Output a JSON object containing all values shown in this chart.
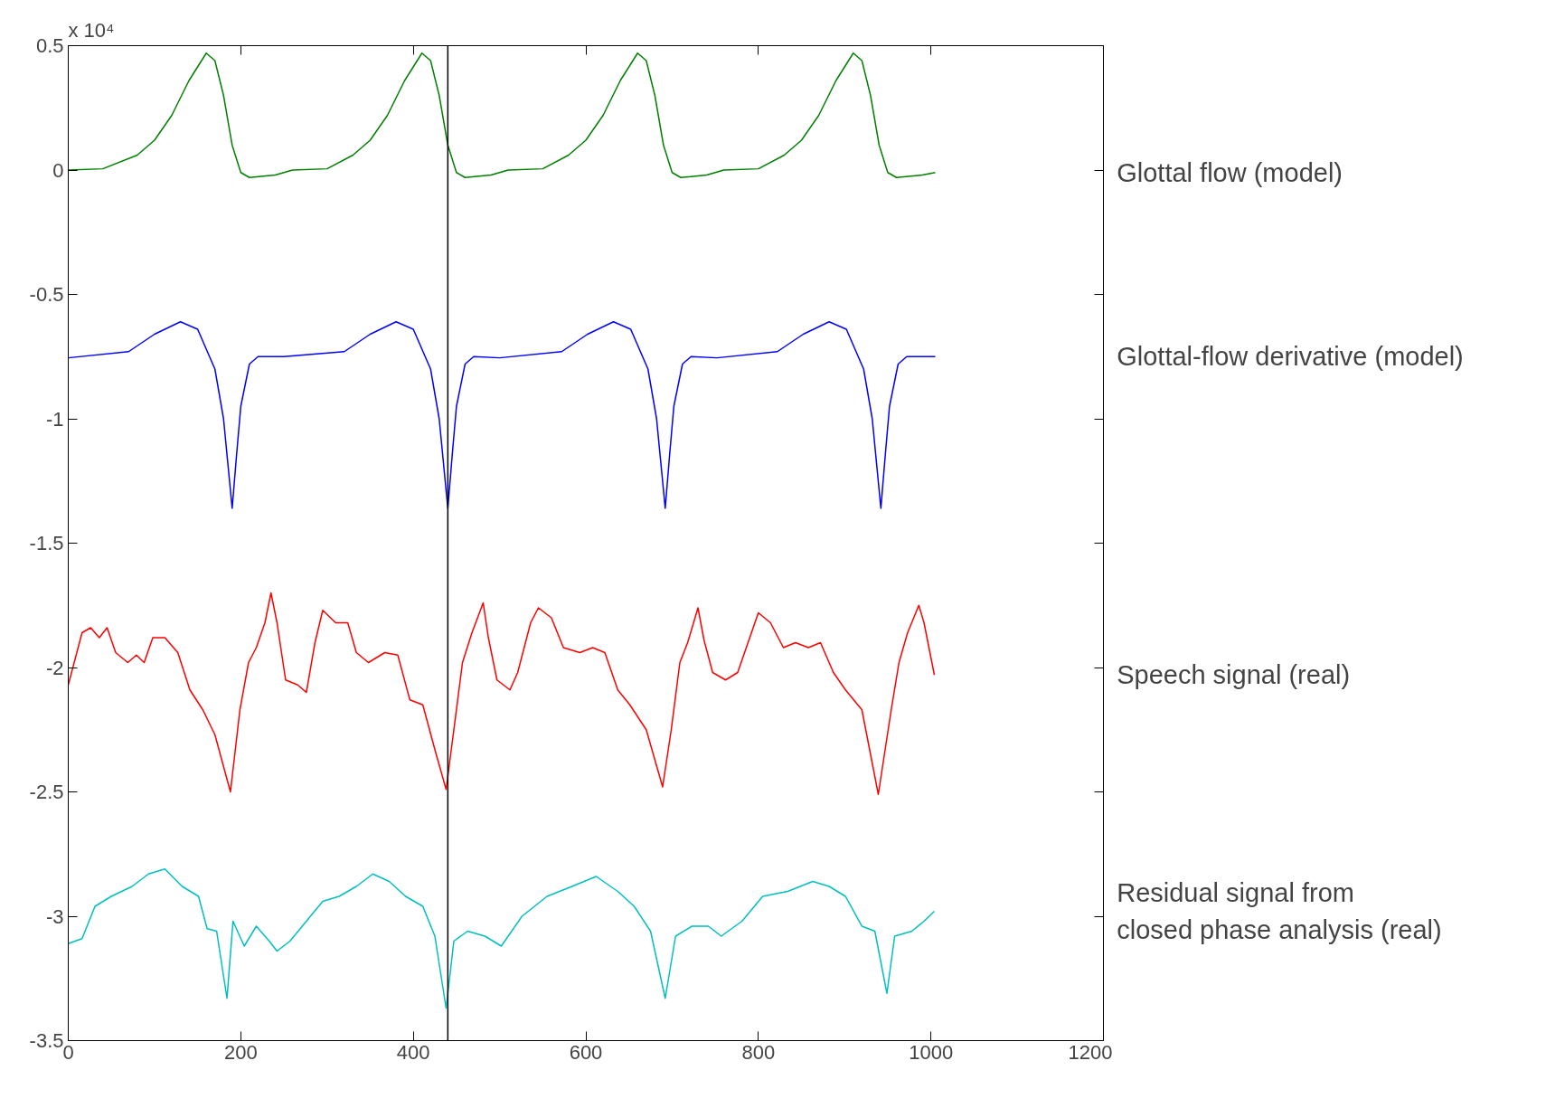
{
  "chart_data": {
    "type": "line",
    "xlim": [
      0,
      1200
    ],
    "ylim": [
      -3.5,
      0.5
    ],
    "xticks": [
      0,
      200,
      400,
      600,
      800,
      1000,
      1200
    ],
    "yticks": [
      0.5,
      0,
      -0.5,
      -1,
      -1.5,
      -2,
      -2.5,
      -3,
      -3.5
    ],
    "grid": false,
    "legend": false,
    "marker": "none",
    "line_style": "solid",
    "annotations": [
      "x 10⁴"
    ],
    "ref_lines": [
      {
        "axis": "x",
        "value": 440,
        "color": "#000000"
      }
    ],
    "series": [
      {
        "name": "Glottal flow (model)",
        "color": "#008000",
        "x": [
          0,
          40,
          80,
          100,
          120,
          140,
          160,
          170,
          180,
          190,
          200,
          210,
          240,
          260,
          300,
          330,
          350,
          370,
          390,
          410,
          420,
          430,
          440,
          450,
          460,
          490,
          510,
          550,
          580,
          600,
          620,
          640,
          660,
          670,
          680,
          690,
          700,
          710,
          740,
          760,
          800,
          830,
          850,
          870,
          890,
          910,
          920,
          930,
          940,
          950,
          960,
          990,
          1005
        ],
        "values": [
          0,
          0.005,
          0.06,
          0.12,
          0.22,
          0.36,
          0.47,
          0.44,
          0.3,
          0.1,
          -0.01,
          -0.03,
          -0.02,
          0,
          0.005,
          0.06,
          0.12,
          0.22,
          0.36,
          0.47,
          0.44,
          0.3,
          0.1,
          -0.01,
          -0.03,
          -0.02,
          0,
          0.005,
          0.06,
          0.12,
          0.22,
          0.36,
          0.47,
          0.44,
          0.3,
          0.1,
          -0.01,
          -0.03,
          -0.02,
          0,
          0.005,
          0.06,
          0.12,
          0.22,
          0.36,
          0.47,
          0.44,
          0.3,
          0.1,
          -0.01,
          -0.03,
          -0.02,
          -0.01
        ]
      },
      {
        "name": "Glottal-flow derivative (model)",
        "color": "#0000ff",
        "x": [
          0,
          70,
          100,
          130,
          150,
          170,
          180,
          190,
          195,
          200,
          210,
          220,
          250,
          320,
          350,
          380,
          400,
          420,
          430,
          440,
          445,
          450,
          460,
          470,
          500,
          572,
          602,
          632,
          652,
          672,
          682,
          692,
          697,
          702,
          712,
          722,
          752,
          822,
          852,
          882,
          902,
          922,
          932,
          942,
          947,
          952,
          962,
          972,
          1005
        ],
        "values": [
          -0.755,
          -0.73,
          -0.66,
          -0.61,
          -0.64,
          -0.8,
          -1.0,
          -1.36,
          -1.15,
          -0.95,
          -0.78,
          -0.75,
          -0.75,
          -0.73,
          -0.66,
          -0.61,
          -0.64,
          -0.8,
          -1.0,
          -1.36,
          -1.15,
          -0.95,
          -0.78,
          -0.75,
          -0.755,
          -0.73,
          -0.66,
          -0.61,
          -0.64,
          -0.8,
          -1.0,
          -1.36,
          -1.15,
          -0.95,
          -0.78,
          -0.75,
          -0.755,
          -0.73,
          -0.66,
          -0.61,
          -0.64,
          -0.8,
          -1.0,
          -1.36,
          -1.15,
          -0.95,
          -0.78,
          -0.75,
          -0.75
        ]
      },
      {
        "name": "Speech signal (real)",
        "color": "#ff0000",
        "x": [
          0,
          16,
          26,
          36,
          45,
          55,
          69,
          79,
          88,
          98,
          112,
          127,
          141,
          156,
          170,
          188,
          199,
          209,
          218,
          228,
          235,
          242,
          252,
          266,
          276,
          286,
          295,
          310,
          324,
          334,
          348,
          367,
          382,
          396,
          411,
          425,
          438,
          447,
          457,
          468,
          481,
          487,
          497,
          512,
          521,
          536,
          545,
          560,
          574,
          593,
          608,
          622,
          637,
          651,
          670,
          689,
          699,
          709,
          718,
          730,
          737,
          747,
          762,
          776,
          790,
          800,
          814,
          829,
          843,
          858,
          872,
          887,
          901,
          920,
          939,
          954,
          963,
          973,
          986,
          992,
          1004
        ],
        "values": [
          -2.07,
          -1.86,
          -1.84,
          -1.88,
          -1.84,
          -1.94,
          -1.98,
          -1.95,
          -1.98,
          -1.88,
          -1.88,
          -1.94,
          -2.09,
          -2.17,
          -2.27,
          -2.5,
          -2.17,
          -1.98,
          -1.92,
          -1.82,
          -1.7,
          -1.82,
          -2.05,
          -2.07,
          -2.1,
          -1.9,
          -1.77,
          -1.82,
          -1.82,
          -1.94,
          -1.98,
          -1.94,
          -1.95,
          -2.13,
          -2.15,
          -2.33,
          -2.49,
          -2.25,
          -1.98,
          -1.86,
          -1.74,
          -1.88,
          -2.05,
          -2.09,
          -2.02,
          -1.82,
          -1.76,
          -1.8,
          -1.92,
          -1.94,
          -1.92,
          -1.94,
          -2.09,
          -2.15,
          -2.25,
          -2.48,
          -2.25,
          -1.98,
          -1.9,
          -1.76,
          -1.89,
          -2.02,
          -2.05,
          -2.02,
          -1.88,
          -1.78,
          -1.82,
          -1.92,
          -1.9,
          -1.92,
          -1.9,
          -2.02,
          -2.09,
          -2.17,
          -2.51,
          -2.17,
          -1.98,
          -1.86,
          -1.75,
          -1.82,
          -2.03
        ]
      },
      {
        "name": "Residual signal from\nclosed phase analysis (real)",
        "color": "#00bfbf",
        "x": [
          0,
          16,
          31,
          50,
          74,
          93,
          112,
          132,
          151,
          161,
          172,
          184,
          191,
          204,
          218,
          233,
          242,
          257,
          276,
          295,
          314,
          334,
          353,
          372,
          391,
          411,
          425,
          438,
          447,
          463,
          483,
          502,
          526,
          555,
          584,
          612,
          637,
          656,
          675,
          692,
          704,
          723,
          742,
          757,
          781,
          805,
          834,
          863,
          882,
          901,
          920,
          935,
          949,
          958,
          978,
          992,
          1004
        ],
        "values": [
          -3.11,
          -3.09,
          -2.96,
          -2.92,
          -2.88,
          -2.83,
          -2.81,
          -2.88,
          -2.92,
          -3.05,
          -3.06,
          -3.33,
          -3.02,
          -3.12,
          -3.04,
          -3.1,
          -3.14,
          -3.1,
          -3.02,
          -2.94,
          -2.92,
          -2.88,
          -2.83,
          -2.86,
          -2.92,
          -2.96,
          -3.08,
          -3.37,
          -3.1,
          -3.06,
          -3.08,
          -3.12,
          -3,
          -2.92,
          -2.88,
          -2.84,
          -2.9,
          -2.96,
          -3.06,
          -3.33,
          -3.08,
          -3.04,
          -3.04,
          -3.08,
          -3.02,
          -2.92,
          -2.9,
          -2.86,
          -2.88,
          -2.92,
          -3.04,
          -3.06,
          -3.31,
          -3.08,
          -3.06,
          -3.02,
          -2.98
        ]
      }
    ]
  }
}
